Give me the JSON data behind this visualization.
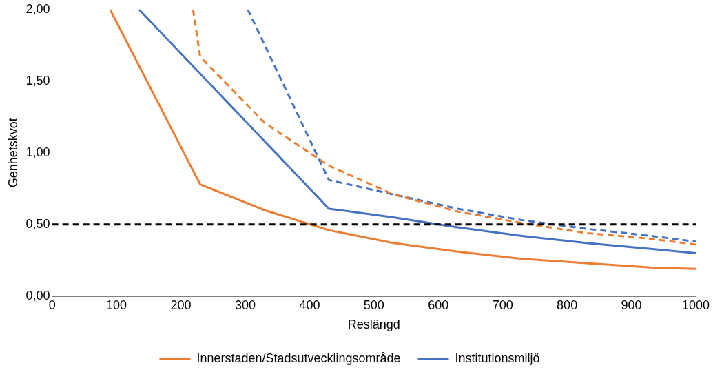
{
  "chart_data": {
    "type": "line",
    "xlabel": "Reslängd",
    "ylabel": "Genhetskvot",
    "xlim": [
      0,
      1000
    ],
    "xticks": [
      0,
      100,
      200,
      300,
      400,
      500,
      600,
      700,
      800,
      900,
      1000
    ],
    "ylim": [
      0,
      2
    ],
    "yticks": [
      {
        "value": 0,
        "label": "0,00"
      },
      {
        "value": 0.5,
        "label": "0,50"
      },
      {
        "value": 1,
        "label": "1,00"
      },
      {
        "value": 1.5,
        "label": "1,50"
      },
      {
        "value": 2,
        "label": "2,00"
      }
    ],
    "grid": false,
    "legend": "bottom",
    "marker": "none",
    "series": [
      {
        "name": "Innerstaden/Stadsutvecklingsområde",
        "color": "#ed7d31",
        "line_style": "solid",
        "x": [
          90,
          230,
          330,
          430,
          530,
          630,
          730,
          830,
          930,
          1000
        ],
        "values": [
          2.0,
          0.78,
          0.6,
          0.46,
          0.37,
          0.31,
          0.26,
          0.23,
          0.2,
          0.19
        ]
      },
      {
        "name": "Institutionsmiljö",
        "color": "#4472c4",
        "line_style": "solid",
        "x": [
          135,
          430,
          530,
          630,
          730,
          830,
          930,
          1000
        ],
        "values": [
          2.0,
          0.61,
          0.55,
          0.48,
          0.42,
          0.37,
          0.33,
          0.3
        ]
      },
      {
        "color": "#ed7d31",
        "line_style": "dashed",
        "x": [
          219,
          230,
          330,
          430,
          530,
          630,
          730,
          830,
          930,
          1000
        ],
        "values": [
          2.0,
          1.67,
          1.21,
          0.91,
          0.71,
          0.59,
          0.51,
          0.44,
          0.4,
          0.36
        ]
      },
      {
        "color": "#4472c4",
        "line_style": "dashed",
        "x": [
          304,
          430,
          530,
          630,
          730,
          830,
          930,
          1000
        ],
        "values": [
          2.0,
          0.81,
          0.71,
          0.61,
          0.53,
          0.47,
          0.42,
          0.38
        ]
      }
    ],
    "ref_lines": [
      {
        "axis": "y",
        "value": 0.5,
        "color": "#000000",
        "line_style": "dashed"
      }
    ]
  }
}
